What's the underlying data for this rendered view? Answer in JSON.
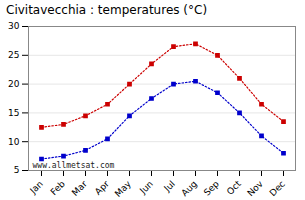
{
  "chart_data": {
    "type": "line",
    "title": "Civitavecchia : temperatures (°C)",
    "categories": [
      "Jan",
      "Feb",
      "Mar",
      "Apr",
      "May",
      "Jun",
      "Jul",
      "Aug",
      "Sep",
      "Oct",
      "Nov",
      "Dec"
    ],
    "series": [
      {
        "color": "#cc0000",
        "marker": "square",
        "line_style": "dotted",
        "values": [
          12.5,
          13.0,
          14.5,
          16.5,
          20.0,
          23.5,
          26.5,
          27.0,
          25.0,
          21.0,
          16.5,
          13.5
        ]
      },
      {
        "color": "#0000cc",
        "marker": "square",
        "line_style": "dotted",
        "values": [
          7.0,
          7.5,
          8.5,
          10.5,
          14.5,
          17.5,
          20.0,
          20.5,
          18.5,
          15.0,
          11.0,
          8.0
        ]
      }
    ],
    "ylim": [
      5,
      30
    ],
    "yticks": [
      5,
      10,
      15,
      20,
      25,
      30
    ],
    "grid": "y",
    "annotations": [
      "www.allmetsat.com"
    ]
  }
}
